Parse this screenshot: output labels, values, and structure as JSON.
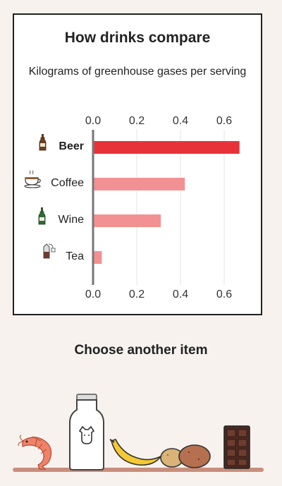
{
  "chart": {
    "title": "How drinks compare",
    "subtitle": "Kilograms of greenhouse gases per serving"
  },
  "chart_data": {
    "type": "bar",
    "orientation": "horizontal",
    "title": "How drinks compare",
    "subtitle": "Kilograms of greenhouse gases per serving",
    "categories": [
      "Beer",
      "Coffee",
      "Wine",
      "Tea"
    ],
    "category_icons": [
      "beer-bottle-icon",
      "coffee-cup-icon",
      "wine-bottle-icon",
      "tea-bag-icon"
    ],
    "values": [
      0.67,
      0.42,
      0.31,
      0.04
    ],
    "highlight": "Beer",
    "xlim": [
      0.0,
      0.7
    ],
    "xticks": [
      "0.0",
      "0.2",
      "0.4",
      "0.6"
    ],
    "grid": true,
    "colors": {
      "highlight": "#e8323a",
      "default": "#f29193"
    }
  },
  "selector": {
    "title": "Choose another item",
    "items": [
      {
        "name": "Prawns",
        "icon": "prawn-icon"
      },
      {
        "name": "Milk",
        "icon": "milk-bottle-icon"
      },
      {
        "name": "Banana",
        "icon": "banana-icon"
      },
      {
        "name": "Potatoes",
        "icon": "potato-icon"
      },
      {
        "name": "Chocolate",
        "icon": "chocolate-bar-icon"
      }
    ]
  }
}
